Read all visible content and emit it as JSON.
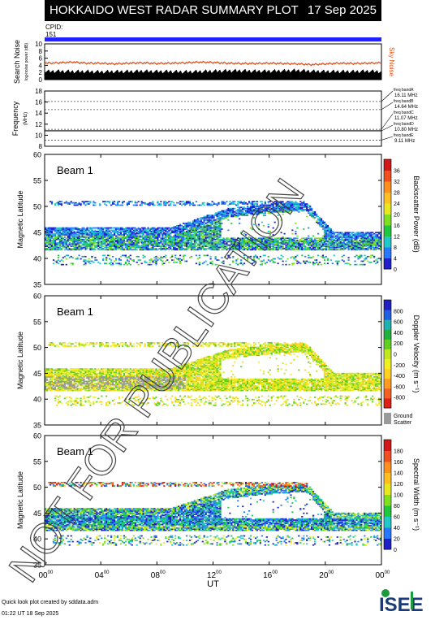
{
  "header": {
    "title": "HOKKAIDO WEST RADAR SUMMARY PLOT",
    "date": "17 Sep 2025",
    "cpid_label": "CPID:",
    "cpid_value": "151"
  },
  "colors": {
    "cpid_bar": "#2222ff",
    "noise_line": "#e0501a",
    "search_noise_fill": "#000000",
    "ground_scatter": "#9a9a9a"
  },
  "chart_data": [
    {
      "id": "noise",
      "type": "area",
      "ylabel": "Search Noise",
      "ylabel_sub": "log-noise power (dB)",
      "right_label": "Sky Noise",
      "ylim": [
        0,
        10
      ],
      "yticks": [
        "0",
        "2",
        "4",
        "6",
        "8",
        "10"
      ],
      "x_hours": [
        0,
        1,
        2,
        3,
        4,
        5,
        6,
        7,
        8,
        9,
        10,
        11,
        12,
        13,
        14,
        15,
        16,
        17,
        18,
        19,
        20,
        21,
        22,
        23,
        24
      ],
      "search_noise": [
        2.3,
        2.4,
        2.3,
        2.3,
        2.2,
        2.3,
        2.3,
        2.4,
        2.3,
        2.3,
        2.2,
        2.3,
        2.4,
        2.5,
        2.5,
        2.4,
        2.4,
        2.5,
        2.6,
        2.4,
        2.3,
        2.3,
        2.3,
        2.4,
        2.3
      ],
      "sky_noise": [
        4.6,
        4.7,
        4.9,
        4.6,
        4.6,
        4.4,
        4.6,
        4.7,
        4.5,
        4.6,
        4.7,
        4.9,
        4.8,
        4.6,
        4.5,
        4.5,
        4.6,
        4.5,
        4.4,
        4.2,
        4.4,
        4.6,
        4.5,
        4.6,
        4.7
      ]
    },
    {
      "id": "frequency",
      "type": "line",
      "ylabel": "Frequency",
      "ylabel_sub": "(MHz)",
      "ylim": [
        8,
        18
      ],
      "yticks": [
        "8",
        "10",
        "12",
        "14",
        "16",
        "18"
      ],
      "bands": [
        {
          "name": "freq bandA",
          "value": "16.11 MHz",
          "mhz": 16.11
        },
        {
          "name": "freq bandB",
          "value": "14.64 MHz",
          "mhz": 14.64
        },
        {
          "name": "freq bandC",
          "value": "11.07 MHz",
          "mhz": 11.07
        },
        {
          "name": "freq bandD",
          "value": "10.80 MHz",
          "mhz": 10.8
        },
        {
          "name": "freq bandE",
          "value": "9.11 MHz",
          "mhz": 9.11
        }
      ],
      "operating_mhz": 10.8
    },
    {
      "id": "power",
      "type": "heatmap",
      "panel_label": "Beam  1",
      "ylabel": "Magnetic Latitude",
      "ylim": [
        35,
        60
      ],
      "yticks": [
        "35",
        "40",
        "45",
        "50",
        "55",
        "60"
      ],
      "colorbar_label": "Backscatter Power (dB)",
      "colorbar_ticks": [
        "0",
        "4",
        "8",
        "12",
        "16",
        "20",
        "24",
        "28",
        "32",
        "36"
      ],
      "colorbar_colors": [
        "#2020c8",
        "#2878ff",
        "#20c8c8",
        "#20c840",
        "#80e020",
        "#e8e820",
        "#ffc020",
        "#ff9020",
        "#f05020",
        "#d01818"
      ]
    },
    {
      "id": "velocity",
      "type": "heatmap",
      "panel_label": "Beam  1",
      "ylabel": "Magnetic Latitude",
      "ylim": [
        35,
        60
      ],
      "yticks": [
        "35",
        "40",
        "45",
        "50",
        "55",
        "60"
      ],
      "colorbar_label": "Doppler Velocity (m s⁻¹)",
      "colorbar_ticks": [
        "-800",
        "-600",
        "-400",
        "-200",
        "0",
        "200",
        "400",
        "600",
        "800"
      ],
      "colorbar_colors": [
        "#e02018",
        "#f06020",
        "#ff9a20",
        "#ffd020",
        "#f0f020",
        "#c0e820",
        "#60d020",
        "#20b040",
        "#20b0b0",
        "#2060e0",
        "#2020c0"
      ],
      "ground_scatter_label": "Ground Scatter"
    },
    {
      "id": "width",
      "type": "heatmap",
      "panel_label": "Beam  1",
      "ylabel": "Magnetic Latitude",
      "ylim": [
        35,
        60
      ],
      "yticks": [
        "35",
        "40",
        "45",
        "50",
        "55",
        "60"
      ],
      "colorbar_label": "Spectral Width (m s⁻¹)",
      "colorbar_ticks": [
        "0",
        "20",
        "40",
        "60",
        "80",
        "100",
        "120",
        "140",
        "160",
        "180"
      ],
      "colorbar_colors": [
        "#2020c8",
        "#2878ff",
        "#20c8c8",
        "#20c840",
        "#80e020",
        "#e8e820",
        "#ffc020",
        "#ff9020",
        "#f05020",
        "#d01818"
      ],
      "xlabel": "UT",
      "xticks": [
        "00",
        "04",
        "08",
        "12",
        "16",
        "20",
        "00"
      ],
      "xtick_sup": "00"
    }
  ],
  "footer": {
    "line1": "Quick look plot created by sddata.adm",
    "line2": "01:22 UT 18 Sep 2025"
  },
  "logo_text": "ISEE",
  "watermark": "NOT FOR PUBLICATION"
}
